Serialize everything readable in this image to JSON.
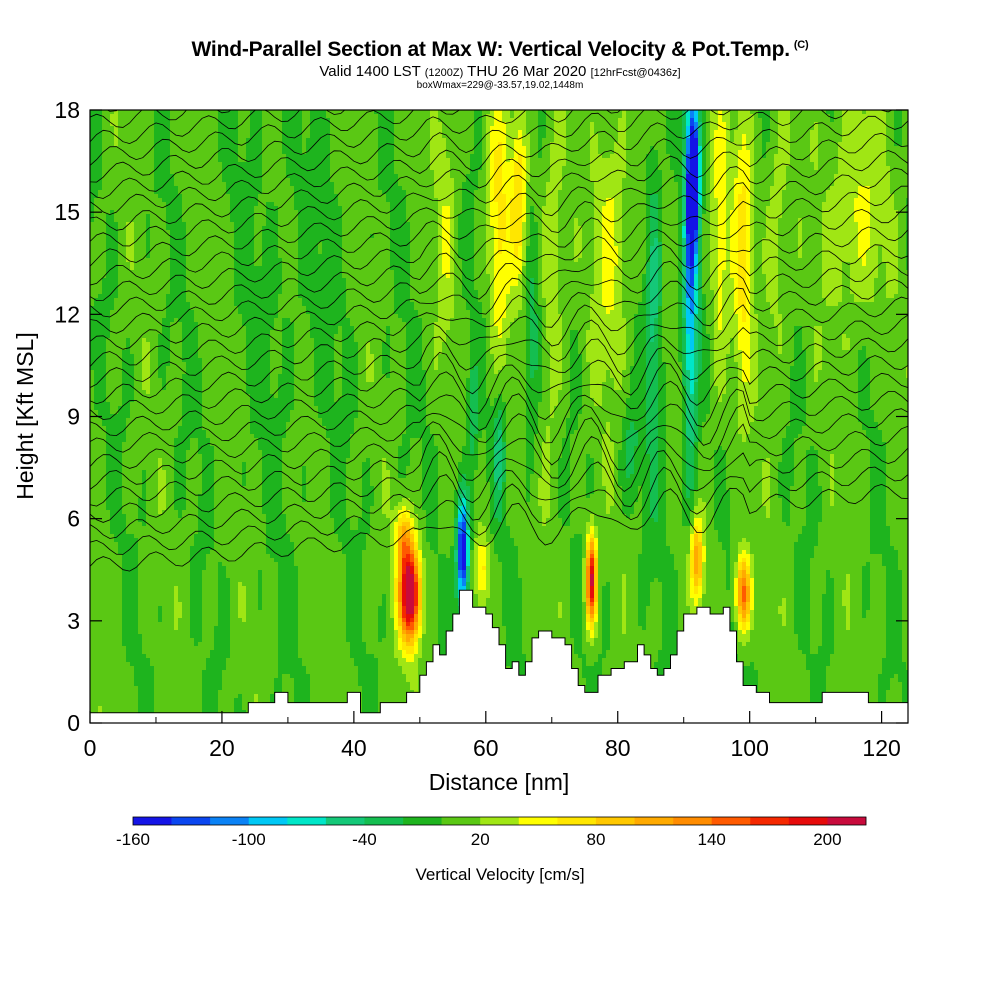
{
  "header": {
    "title": "Wind-Parallel Section at Max W: Vertical Velocity & Pot.Temp.",
    "copyright": "(C)",
    "valid_prefix": "Valid 1400 LST",
    "valid_utc": "(1200Z)",
    "valid_date": "THU 26 Mar 2020",
    "forecast": "[12hrFcst@0436z]",
    "boxwmax": "boxWmax=229@-33.57,19.02,1448m"
  },
  "chart_data": {
    "type": "heatmap",
    "xlabel": "Distance [nm]",
    "ylabel": "Height [Kft MSL]",
    "xlim": [
      0,
      124
    ],
    "ylim": [
      0,
      18
    ],
    "x_ticks": [
      0,
      20,
      40,
      60,
      80,
      100,
      120
    ],
    "x_tick_labels": [
      "0",
      "20",
      "40",
      "60",
      "80",
      "100",
      "120"
    ],
    "y_ticks": [
      0,
      3,
      6,
      9,
      12,
      15,
      18
    ],
    "y_tick_labels": [
      "0",
      "3",
      "6",
      "9",
      "12",
      "15",
      "18"
    ],
    "colorbar": {
      "label": "Vertical Velocity [cm/s]",
      "bounds": [
        -160,
        220
      ],
      "step": 20,
      "tick_values": [
        -160,
        -100,
        -40,
        20,
        80,
        140,
        200
      ],
      "tick_labels": [
        "-160",
        "-100",
        "-40",
        "20",
        "80",
        "140",
        "200"
      ],
      "colors": [
        "#1414e6",
        "#0a46f0",
        "#0a82f5",
        "#00c8f5",
        "#00e6c8",
        "#14c878",
        "#14be50",
        "#1eb41e",
        "#5ac814",
        "#a0e614",
        "#ffff00",
        "#ffe600",
        "#ffc800",
        "#ffaa00",
        "#ff8c00",
        "#ff5a00",
        "#f52800",
        "#e60a0a",
        "#c80a3c"
      ]
    },
    "terrain_kft": [
      [
        0,
        0.3
      ],
      [
        4,
        0.3
      ],
      [
        8,
        0.3
      ],
      [
        12,
        0.3
      ],
      [
        16,
        0.3
      ],
      [
        20,
        0.3
      ],
      [
        24,
        0.6
      ],
      [
        27,
        0.6
      ],
      [
        28,
        0.9
      ],
      [
        30,
        0.6
      ],
      [
        34,
        0.6
      ],
      [
        37,
        0.6
      ],
      [
        39,
        0.9
      ],
      [
        41,
        0.3
      ],
      [
        43,
        0.3
      ],
      [
        44,
        0.6
      ],
      [
        47,
        0.6
      ],
      [
        48,
        0.9
      ],
      [
        49,
        0.9
      ],
      [
        50,
        1.4
      ],
      [
        51,
        1.8
      ],
      [
        52,
        2.3
      ],
      [
        53,
        2.0
      ],
      [
        54,
        2.7
      ],
      [
        55,
        3.2
      ],
      [
        56,
        3.9
      ],
      [
        57,
        3.9
      ],
      [
        58,
        3.4
      ],
      [
        60,
        3.2
      ],
      [
        61,
        2.8
      ],
      [
        62,
        2.3
      ],
      [
        63,
        1.6
      ],
      [
        64,
        1.8
      ],
      [
        65,
        1.4
      ],
      [
        66,
        1.8
      ],
      [
        67,
        2.5
      ],
      [
        68,
        2.7
      ],
      [
        70,
        2.5
      ],
      [
        72,
        2.3
      ],
      [
        73,
        1.6
      ],
      [
        74,
        1.1
      ],
      [
        75,
        0.9
      ],
      [
        77,
        1.4
      ],
      [
        79,
        1.6
      ],
      [
        81,
        1.8
      ],
      [
        83,
        2.3
      ],
      [
        84,
        2.0
      ],
      [
        85,
        1.6
      ],
      [
        86,
        1.4
      ],
      [
        87,
        1.6
      ],
      [
        88,
        2.0
      ],
      [
        89,
        2.7
      ],
      [
        90,
        3.2
      ],
      [
        92,
        3.4
      ],
      [
        94,
        3.2
      ],
      [
        96,
        3.4
      ],
      [
        97,
        2.7
      ],
      [
        98,
        1.8
      ],
      [
        99,
        1.1
      ],
      [
        101,
        0.9
      ],
      [
        103,
        0.6
      ],
      [
        106,
        0.6
      ],
      [
        109,
        0.6
      ],
      [
        111,
        0.9
      ],
      [
        114,
        0.9
      ],
      [
        116,
        0.9
      ],
      [
        118,
        0.6
      ],
      [
        121,
        0.6
      ],
      [
        123,
        0.6
      ],
      [
        124,
        0.3
      ]
    ]
  }
}
